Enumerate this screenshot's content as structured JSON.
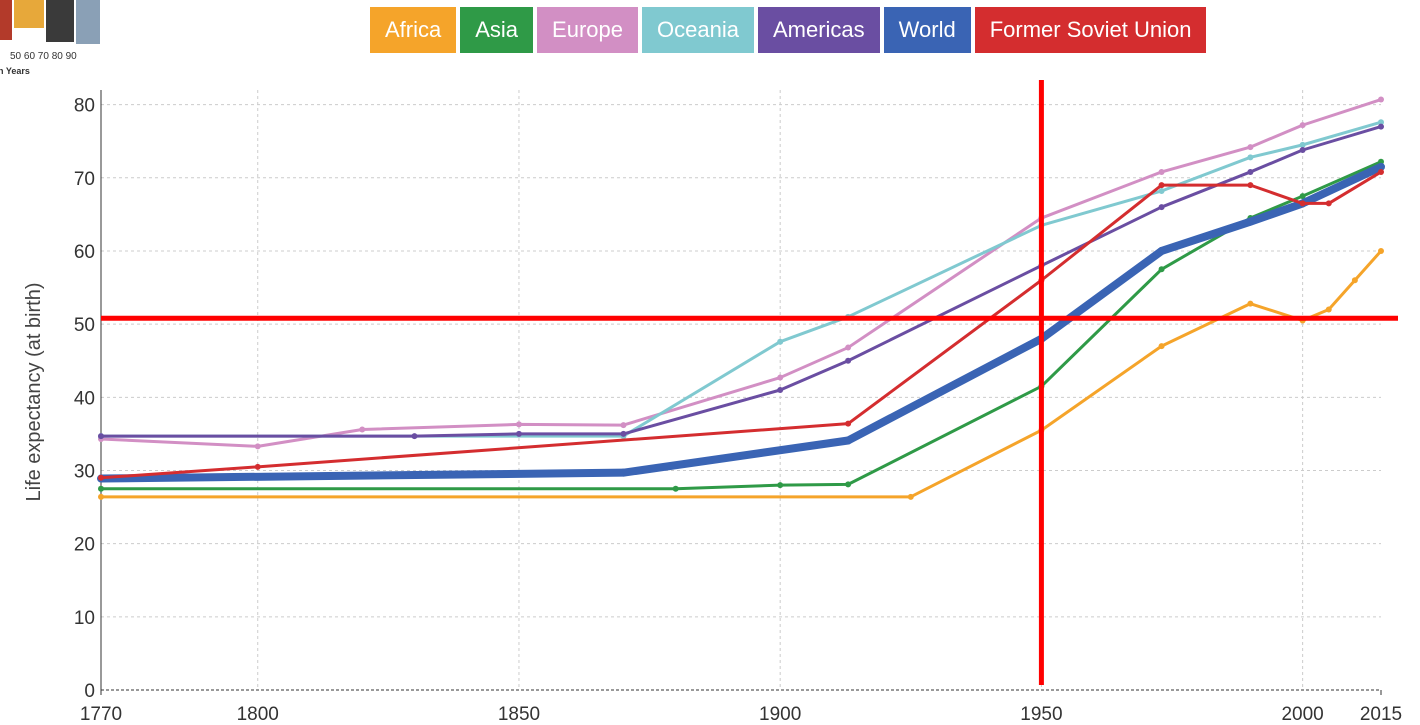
{
  "logo": {
    "scale": "50 60 70 80 90",
    "caption": "n Years"
  },
  "chart_data": {
    "type": "line",
    "y_label": "Life expectancy (at birth)",
    "xlim": [
      1770,
      2015
    ],
    "ylim": [
      0,
      82
    ],
    "xticks": [
      1770,
      1800,
      1850,
      1900,
      1950,
      2000,
      2015
    ],
    "yticks": [
      0,
      10,
      20,
      30,
      40,
      50,
      60,
      70,
      80
    ],
    "grid": true,
    "crosshair": {
      "x": 1950,
      "y": 50.8,
      "color": "#ff0000"
    },
    "series": [
      {
        "name": "Africa",
        "color": "#f5a42a",
        "width": 3,
        "x": [
          1770,
          1925,
          1950,
          1973,
          1990,
          2000,
          2005,
          2010,
          2015
        ],
        "values": [
          26.4,
          26.4,
          35.5,
          47,
          52.8,
          50.5,
          52,
          56,
          60
        ]
      },
      {
        "name": "Asia",
        "color": "#2f9a47",
        "width": 3,
        "x": [
          1770,
          1880,
          1900,
          1913,
          1950,
          1973,
          1990,
          2000,
          2015
        ],
        "values": [
          27.5,
          27.5,
          28,
          28.1,
          41.5,
          57.5,
          64.5,
          67.5,
          72.2
        ]
      },
      {
        "name": "Europe",
        "color": "#d28fc4",
        "width": 3,
        "x": [
          1770,
          1800,
          1820,
          1850,
          1870,
          1900,
          1913,
          1950,
          1973,
          1990,
          2000,
          2015
        ],
        "values": [
          34.3,
          33.3,
          35.6,
          36.3,
          36.2,
          42.7,
          46.8,
          64.5,
          70.8,
          74.2,
          77.2,
          80.7
        ]
      },
      {
        "name": "Oceania",
        "color": "#80c9d0",
        "width": 3,
        "x": [
          1770,
          1870,
          1900,
          1913,
          1950,
          1973,
          1990,
          2000,
          2015
        ],
        "values": [
          34.7,
          34.7,
          47.6,
          51,
          63.5,
          68.2,
          72.8,
          74.5,
          77.6
        ]
      },
      {
        "name": "Americas",
        "color": "#6a4ea2",
        "width": 3,
        "x": [
          1770,
          1830,
          1850,
          1870,
          1900,
          1913,
          1950,
          1973,
          1990,
          2000,
          2015
        ],
        "values": [
          34.7,
          34.7,
          35,
          35,
          41,
          45,
          58,
          66,
          70.8,
          73.8,
          77
        ]
      },
      {
        "name": "World",
        "color": "#3a64b4",
        "width": 8,
        "x": [
          1770,
          1870,
          1913,
          1950,
          1973,
          1990,
          2000,
          2015
        ],
        "values": [
          28.9,
          29.7,
          34.1,
          48,
          60,
          64,
          66.5,
          71.5
        ]
      },
      {
        "name": "Former Soviet Union",
        "color": "#d42d2f",
        "width": 3,
        "x": [
          1770,
          1800,
          1913,
          1950,
          1973,
          1990,
          2000,
          2005,
          2015
        ],
        "values": [
          29,
          30.5,
          36.4,
          56,
          69,
          69,
          66.5,
          66.5,
          70.8
        ]
      }
    ]
  }
}
